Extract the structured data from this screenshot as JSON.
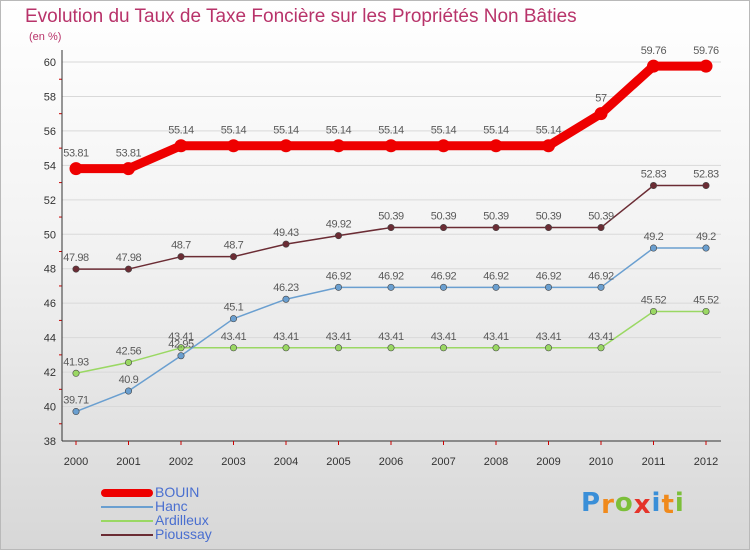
{
  "header": {
    "title": "Evolution du Taux de Taxe Foncière sur les Propriétés Non Bâties",
    "unit": "(en %)"
  },
  "colors": {
    "title": "#b8336a",
    "axis": "#333333",
    "tick_marks": "#cc0000",
    "grid": "#d9d9d9"
  },
  "logo": {
    "chars": [
      "P",
      "r",
      "o",
      "x",
      "i",
      "t",
      "i"
    ],
    "colors": [
      "#3a8fd8",
      "#f08a1c",
      "#7cbf3a",
      "#e5332a",
      "#3a8fd8",
      "#f08a1c",
      "#7cbf3a"
    ]
  },
  "chart_data": {
    "type": "line",
    "title": "Evolution du Taux de Taxe Foncière sur les Propriétés Non Bâties",
    "ylabel": "(en %)",
    "xlabel": "",
    "categories": [
      "2000",
      "2001",
      "2002",
      "2003",
      "2004",
      "2005",
      "2006",
      "2007",
      "2008",
      "2009",
      "2010",
      "2011",
      "2012"
    ],
    "ylim": [
      38,
      60
    ],
    "yticks": [
      "38",
      "40",
      "42",
      "44",
      "46",
      "48",
      "50",
      "52",
      "54",
      "56",
      "58",
      "60"
    ],
    "grid": true,
    "series": [
      {
        "name": "BOUIN",
        "color": "#ee0000",
        "values": [
          53.81,
          53.81,
          55.14,
          55.14,
          55.14,
          55.14,
          55.14,
          55.14,
          55.14,
          55.14,
          57,
          59.76,
          59.76
        ],
        "labels": [
          "53.81",
          "53.81",
          "55.14",
          "55.14",
          "55.14",
          "55.14",
          "55.14",
          "55.14",
          "55.14",
          "55.14",
          "57",
          "59.76",
          "59.76"
        ]
      },
      {
        "name": "Hanc",
        "color": "#6a9fd0",
        "values": [
          39.71,
          40.9,
          42.95,
          45.1,
          46.23,
          46.92,
          46.92,
          46.92,
          46.92,
          46.92,
          46.92,
          49.2,
          49.2
        ],
        "labels": [
          "39.71",
          "40.9",
          "42.95",
          "45.1",
          "46.23",
          "46.92",
          "46.92",
          "46.92",
          "46.92",
          "46.92",
          "46.92",
          "49.2",
          "49.2"
        ]
      },
      {
        "name": "Ardilleux",
        "color": "#9ad863",
        "values": [
          41.93,
          42.56,
          43.41,
          43.41,
          43.41,
          43.41,
          43.41,
          43.41,
          43.41,
          43.41,
          43.41,
          45.52,
          45.52
        ],
        "labels": [
          "41.93",
          "42.56",
          "43.41",
          "43.41",
          "43.41",
          "43.41",
          "43.41",
          "43.41",
          "43.41",
          "43.41",
          "43.41",
          "45.52",
          "45.52"
        ]
      },
      {
        "name": "Pioussay",
        "color": "#6b2c34",
        "values": [
          47.98,
          47.98,
          48.7,
          48.7,
          49.43,
          49.92,
          50.39,
          50.39,
          50.39,
          50.39,
          50.39,
          52.83,
          52.83
        ],
        "labels": [
          "47.98",
          "47.98",
          "48.7",
          "48.7",
          "49.43",
          "49.92",
          "50.39",
          "50.39",
          "50.39",
          "50.39",
          "50.39",
          "52.83",
          "52.83"
        ]
      }
    ]
  }
}
